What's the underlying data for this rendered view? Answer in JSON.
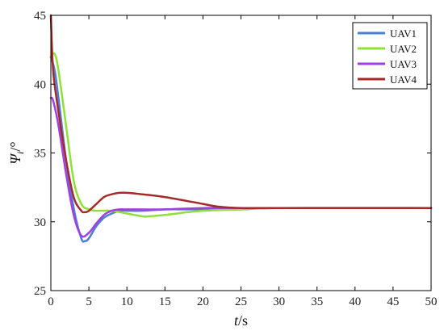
{
  "chart_data": {
    "type": "line",
    "title": "",
    "xlabel": {
      "var": "t",
      "unit": "/s"
    },
    "ylabel": {
      "var": "Ψ",
      "sub": "i",
      "unit": "/°"
    },
    "xlim": [
      0,
      50
    ],
    "ylim": [
      25,
      45
    ],
    "xticks": [
      "0",
      "5",
      "10",
      "15",
      "20",
      "25",
      "30",
      "35",
      "40",
      "45",
      "50"
    ],
    "yticks": [
      "25",
      "30",
      "35",
      "40",
      "45"
    ],
    "grid": false,
    "legend_position": "top-right",
    "series": [
      {
        "name": "UAV1",
        "color": "#4a7fd6",
        "x": [
          0,
          0.5,
          1,
          2,
          3,
          4,
          4.5,
          5,
          6,
          7,
          8,
          9,
          10,
          12,
          15,
          18,
          20,
          25,
          30,
          50
        ],
        "y": [
          42,
          41,
          39,
          34.5,
          31,
          28.8,
          28.6,
          28.8,
          29.7,
          30.3,
          30.6,
          30.8,
          30.8,
          30.8,
          30.9,
          30.9,
          30.9,
          30.9,
          31,
          31
        ]
      },
      {
        "name": "UAV2",
        "color": "#8fe03a",
        "x": [
          0,
          0.5,
          1,
          2,
          3,
          4,
          5,
          6,
          8,
          10,
          12,
          13,
          15,
          18,
          20,
          25,
          30,
          50
        ],
        "y": [
          42,
          42.2,
          41,
          37,
          33,
          31.3,
          30.9,
          30.8,
          30.8,
          30.6,
          30.4,
          30.4,
          30.5,
          30.7,
          30.8,
          30.9,
          31,
          31
        ]
      },
      {
        "name": "UAV3",
        "color": "#a040e0",
        "x": [
          0,
          0.3,
          1,
          2,
          3,
          4,
          5,
          6,
          7,
          8,
          9,
          10,
          12,
          15,
          20,
          25,
          30,
          50
        ],
        "y": [
          39,
          38.8,
          37,
          33.5,
          30.5,
          29,
          29.2,
          29.9,
          30.5,
          30.8,
          30.9,
          30.9,
          30.9,
          30.9,
          31,
          31,
          31,
          31
        ]
      },
      {
        "name": "UAV4",
        "color": "#a52a2a",
        "x": [
          0,
          0.3,
          1,
          2,
          3,
          4,
          4.5,
          5,
          6,
          7,
          8,
          9,
          10,
          12,
          15,
          18,
          20,
          22,
          25,
          30,
          50
        ],
        "y": [
          45,
          41,
          38,
          34.5,
          31.8,
          30.8,
          30.7,
          30.8,
          31.3,
          31.8,
          32,
          32.1,
          32.1,
          32,
          31.8,
          31.5,
          31.3,
          31.1,
          31,
          31,
          31
        ]
      }
    ]
  }
}
